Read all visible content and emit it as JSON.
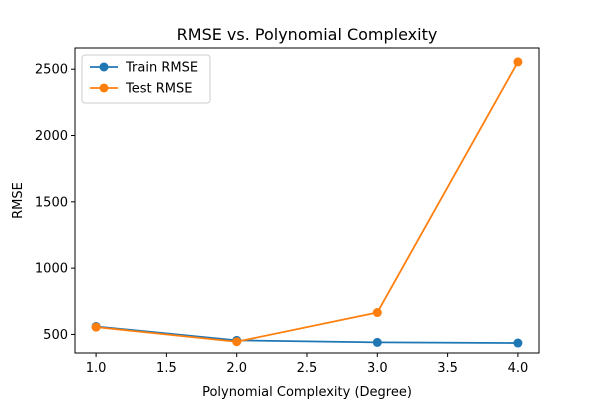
{
  "chart_data": {
    "type": "line",
    "title": "RMSE vs. Polynomial Complexity",
    "xlabel": "Polynomial Complexity (Degree)",
    "ylabel": "RMSE",
    "x": [
      1.0,
      2.0,
      3.0,
      4.0
    ],
    "xlim": [
      0.85,
      4.15
    ],
    "ylim": [
      360,
      2660
    ],
    "xticks": [
      "1.0",
      "1.5",
      "2.0",
      "2.5",
      "3.0",
      "3.5",
      "4.0"
    ],
    "yticks": [
      "500",
      "1000",
      "1500",
      "2000",
      "2500"
    ],
    "grid": false,
    "legend_position": "top-left",
    "series": [
      {
        "name": "Train RMSE",
        "color": "#1f77b4",
        "marker": "circle",
        "values": [
          560,
          455,
          440,
          435
        ]
      },
      {
        "name": "Test RMSE",
        "color": "#ff7f0e",
        "marker": "circle",
        "values": [
          555,
          445,
          665,
          2555
        ]
      }
    ]
  }
}
